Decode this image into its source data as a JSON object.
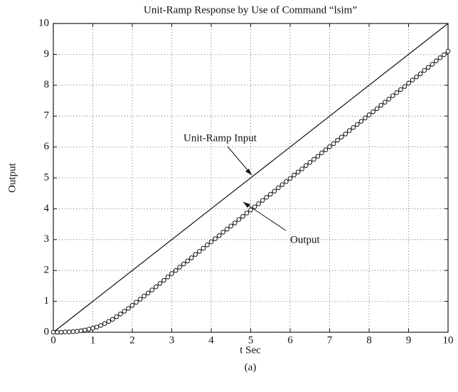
{
  "chart_data": {
    "type": "line",
    "title": "Unit-Ramp Response by Use of Command “lsim”",
    "x_label": "t Sec",
    "y_label": "Output",
    "caption": "(a)",
    "xlim": [
      0,
      10
    ],
    "ylim": [
      0,
      10
    ],
    "xticks": [
      0,
      1,
      2,
      3,
      4,
      5,
      6,
      7,
      8,
      9,
      10
    ],
    "yticks": [
      0,
      1,
      2,
      3,
      4,
      5,
      6,
      7,
      8,
      9,
      10
    ],
    "grid": true,
    "annotations": [
      "Unit-Ramp Input",
      "Output"
    ],
    "series": [
      {
        "name": "Unit-Ramp Input",
        "color": "#111111",
        "marker": "none",
        "x": [
          0,
          10
        ],
        "values": [
          0,
          10
        ]
      },
      {
        "name": "Output",
        "color": "#111111",
        "marker": "circle",
        "x": [
          0,
          0.1,
          0.2,
          0.3,
          0.4,
          0.5,
          0.6,
          0.7,
          0.8,
          0.9,
          1,
          1.1,
          1.2,
          1.3,
          1.4,
          1.5,
          1.6,
          1.7,
          1.8,
          1.9,
          2,
          2.1,
          2.2,
          2.3,
          2.4,
          2.5,
          2.6,
          2.7,
          2.8,
          2.9,
          3,
          3.1,
          3.2,
          3.3,
          3.4,
          3.5,
          3.6,
          3.7,
          3.8,
          3.9,
          4,
          4.1,
          4.2,
          4.3,
          4.4,
          4.5,
          4.6,
          4.7,
          4.8,
          4.9,
          5,
          5.1,
          5.2,
          5.3,
          5.4,
          5.5,
          5.6,
          5.7,
          5.8,
          5.9,
          6,
          6.1,
          6.2,
          6.3,
          6.4,
          6.5,
          6.6,
          6.7,
          6.8,
          6.9,
          7,
          7.1,
          7.2,
          7.3,
          7.4,
          7.5,
          7.6,
          7.7,
          7.8,
          7.9,
          8,
          8.1,
          8.2,
          8.3,
          8.4,
          8.5,
          8.6,
          8.7,
          8.8,
          8.9,
          9,
          9.1,
          9.2,
          9.3,
          9.4,
          9.5,
          9.6,
          9.7,
          9.8,
          9.9,
          10
        ],
        "values": [
          0,
          0,
          0,
          0.01,
          0.01,
          0.02,
          0.03,
          0.05,
          0.07,
          0.1,
          0.13,
          0.17,
          0.22,
          0.28,
          0.35,
          0.42,
          0.5,
          0.59,
          0.68,
          0.77,
          0.87,
          0.97,
          1.07,
          1.17,
          1.27,
          1.37,
          1.47,
          1.58,
          1.68,
          1.79,
          1.9,
          2,
          2.11,
          2.21,
          2.31,
          2.41,
          2.52,
          2.62,
          2.72,
          2.83,
          2.93,
          3.03,
          3.13,
          3.24,
          3.34,
          3.44,
          3.54,
          3.65,
          3.75,
          3.86,
          3.96,
          4.06,
          4.16,
          4.27,
          4.37,
          4.47,
          4.57,
          4.68,
          4.78,
          4.88,
          4.98,
          5.09,
          5.19,
          5.29,
          5.4,
          5.5,
          5.6,
          5.7,
          5.81,
          5.91,
          6.01,
          6.11,
          6.22,
          6.32,
          6.42,
          6.53,
          6.63,
          6.73,
          6.83,
          6.94,
          7.04,
          7.14,
          7.24,
          7.35,
          7.45,
          7.55,
          7.66,
          7.76,
          7.86,
          7.96,
          8.07,
          8.17,
          8.27,
          8.37,
          8.48,
          8.58,
          8.68,
          8.79,
          8.89,
          8.99,
          9.1
        ]
      }
    ]
  }
}
